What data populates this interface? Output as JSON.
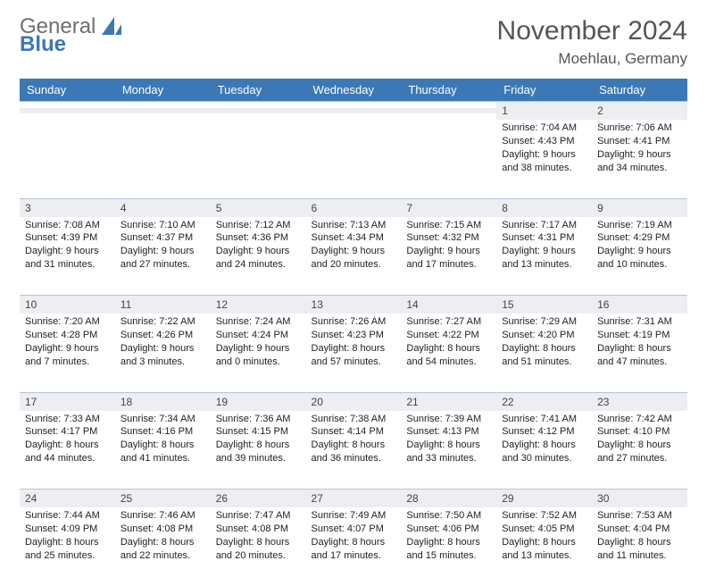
{
  "brand": {
    "line1": "General",
    "line2": "Blue"
  },
  "title": "November 2024",
  "location": "Moehlau, Germany",
  "day_headers": [
    "Sunday",
    "Monday",
    "Tuesday",
    "Wednesday",
    "Thursday",
    "Friday",
    "Saturday"
  ],
  "colors": {
    "header_bg": "#3b78b5",
    "header_text": "#ffffff",
    "daynum_bg": "#eceef1",
    "text": "#222222",
    "subtext": "#555555",
    "border": "#b8c4d4",
    "page_bg": "#ffffff"
  },
  "weeks": [
    [
      {
        "n": "",
        "sunrise": "",
        "sunset": "",
        "daylight": ""
      },
      {
        "n": "",
        "sunrise": "",
        "sunset": "",
        "daylight": ""
      },
      {
        "n": "",
        "sunrise": "",
        "sunset": "",
        "daylight": ""
      },
      {
        "n": "",
        "sunrise": "",
        "sunset": "",
        "daylight": ""
      },
      {
        "n": "",
        "sunrise": "",
        "sunset": "",
        "daylight": ""
      },
      {
        "n": "1",
        "sunrise": "Sunrise: 7:04 AM",
        "sunset": "Sunset: 4:43 PM",
        "daylight": "Daylight: 9 hours and 38 minutes."
      },
      {
        "n": "2",
        "sunrise": "Sunrise: 7:06 AM",
        "sunset": "Sunset: 4:41 PM",
        "daylight": "Daylight: 9 hours and 34 minutes."
      }
    ],
    [
      {
        "n": "3",
        "sunrise": "Sunrise: 7:08 AM",
        "sunset": "Sunset: 4:39 PM",
        "daylight": "Daylight: 9 hours and 31 minutes."
      },
      {
        "n": "4",
        "sunrise": "Sunrise: 7:10 AM",
        "sunset": "Sunset: 4:37 PM",
        "daylight": "Daylight: 9 hours and 27 minutes."
      },
      {
        "n": "5",
        "sunrise": "Sunrise: 7:12 AM",
        "sunset": "Sunset: 4:36 PM",
        "daylight": "Daylight: 9 hours and 24 minutes."
      },
      {
        "n": "6",
        "sunrise": "Sunrise: 7:13 AM",
        "sunset": "Sunset: 4:34 PM",
        "daylight": "Daylight: 9 hours and 20 minutes."
      },
      {
        "n": "7",
        "sunrise": "Sunrise: 7:15 AM",
        "sunset": "Sunset: 4:32 PM",
        "daylight": "Daylight: 9 hours and 17 minutes."
      },
      {
        "n": "8",
        "sunrise": "Sunrise: 7:17 AM",
        "sunset": "Sunset: 4:31 PM",
        "daylight": "Daylight: 9 hours and 13 minutes."
      },
      {
        "n": "9",
        "sunrise": "Sunrise: 7:19 AM",
        "sunset": "Sunset: 4:29 PM",
        "daylight": "Daylight: 9 hours and 10 minutes."
      }
    ],
    [
      {
        "n": "10",
        "sunrise": "Sunrise: 7:20 AM",
        "sunset": "Sunset: 4:28 PM",
        "daylight": "Daylight: 9 hours and 7 minutes."
      },
      {
        "n": "11",
        "sunrise": "Sunrise: 7:22 AM",
        "sunset": "Sunset: 4:26 PM",
        "daylight": "Daylight: 9 hours and 3 minutes."
      },
      {
        "n": "12",
        "sunrise": "Sunrise: 7:24 AM",
        "sunset": "Sunset: 4:24 PM",
        "daylight": "Daylight: 9 hours and 0 minutes."
      },
      {
        "n": "13",
        "sunrise": "Sunrise: 7:26 AM",
        "sunset": "Sunset: 4:23 PM",
        "daylight": "Daylight: 8 hours and 57 minutes."
      },
      {
        "n": "14",
        "sunrise": "Sunrise: 7:27 AM",
        "sunset": "Sunset: 4:22 PM",
        "daylight": "Daylight: 8 hours and 54 minutes."
      },
      {
        "n": "15",
        "sunrise": "Sunrise: 7:29 AM",
        "sunset": "Sunset: 4:20 PM",
        "daylight": "Daylight: 8 hours and 51 minutes."
      },
      {
        "n": "16",
        "sunrise": "Sunrise: 7:31 AM",
        "sunset": "Sunset: 4:19 PM",
        "daylight": "Daylight: 8 hours and 47 minutes."
      }
    ],
    [
      {
        "n": "17",
        "sunrise": "Sunrise: 7:33 AM",
        "sunset": "Sunset: 4:17 PM",
        "daylight": "Daylight: 8 hours and 44 minutes."
      },
      {
        "n": "18",
        "sunrise": "Sunrise: 7:34 AM",
        "sunset": "Sunset: 4:16 PM",
        "daylight": "Daylight: 8 hours and 41 minutes."
      },
      {
        "n": "19",
        "sunrise": "Sunrise: 7:36 AM",
        "sunset": "Sunset: 4:15 PM",
        "daylight": "Daylight: 8 hours and 39 minutes."
      },
      {
        "n": "20",
        "sunrise": "Sunrise: 7:38 AM",
        "sunset": "Sunset: 4:14 PM",
        "daylight": "Daylight: 8 hours and 36 minutes."
      },
      {
        "n": "21",
        "sunrise": "Sunrise: 7:39 AM",
        "sunset": "Sunset: 4:13 PM",
        "daylight": "Daylight: 8 hours and 33 minutes."
      },
      {
        "n": "22",
        "sunrise": "Sunrise: 7:41 AM",
        "sunset": "Sunset: 4:12 PM",
        "daylight": "Daylight: 8 hours and 30 minutes."
      },
      {
        "n": "23",
        "sunrise": "Sunrise: 7:42 AM",
        "sunset": "Sunset: 4:10 PM",
        "daylight": "Daylight: 8 hours and 27 minutes."
      }
    ],
    [
      {
        "n": "24",
        "sunrise": "Sunrise: 7:44 AM",
        "sunset": "Sunset: 4:09 PM",
        "daylight": "Daylight: 8 hours and 25 minutes."
      },
      {
        "n": "25",
        "sunrise": "Sunrise: 7:46 AM",
        "sunset": "Sunset: 4:08 PM",
        "daylight": "Daylight: 8 hours and 22 minutes."
      },
      {
        "n": "26",
        "sunrise": "Sunrise: 7:47 AM",
        "sunset": "Sunset: 4:08 PM",
        "daylight": "Daylight: 8 hours and 20 minutes."
      },
      {
        "n": "27",
        "sunrise": "Sunrise: 7:49 AM",
        "sunset": "Sunset: 4:07 PM",
        "daylight": "Daylight: 8 hours and 17 minutes."
      },
      {
        "n": "28",
        "sunrise": "Sunrise: 7:50 AM",
        "sunset": "Sunset: 4:06 PM",
        "daylight": "Daylight: 8 hours and 15 minutes."
      },
      {
        "n": "29",
        "sunrise": "Sunrise: 7:52 AM",
        "sunset": "Sunset: 4:05 PM",
        "daylight": "Daylight: 8 hours and 13 minutes."
      },
      {
        "n": "30",
        "sunrise": "Sunrise: 7:53 AM",
        "sunset": "Sunset: 4:04 PM",
        "daylight": "Daylight: 8 hours and 11 minutes."
      }
    ]
  ]
}
